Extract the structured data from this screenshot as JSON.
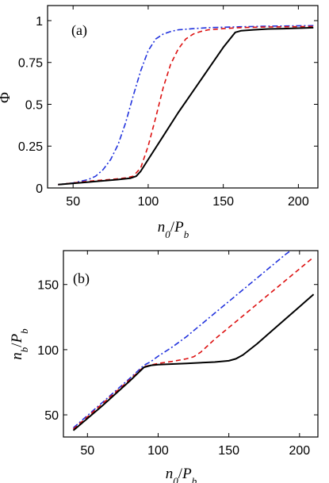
{
  "chart_data": [
    {
      "type": "line",
      "panel_label": "(a)",
      "xlabel": "n0/Pb",
      "ylabel": "Φ",
      "xlim": [
        33,
        213
      ],
      "ylim": [
        0,
        1.09
      ],
      "x_ticks": [
        50,
        100,
        150,
        200
      ],
      "y_ticks": [
        0,
        0.25,
        0.5,
        0.75,
        1
      ],
      "y_tick_labels": [
        "0",
        "0.25",
        "0.5",
        "0.75",
        "1"
      ],
      "grid": false,
      "series": [
        {
          "color": "#2233dd",
          "dash": "dashdot",
          "x": [
            40,
            50,
            60,
            65,
            70,
            75,
            80,
            85,
            90,
            95,
            100,
            105,
            110,
            115,
            120,
            130,
            140,
            160,
            180,
            210
          ],
          "y": [
            0.02,
            0.03,
            0.05,
            0.07,
            0.11,
            0.17,
            0.26,
            0.39,
            0.55,
            0.7,
            0.82,
            0.89,
            0.92,
            0.935,
            0.945,
            0.952,
            0.958,
            0.963,
            0.967,
            0.97
          ]
        },
        {
          "color": "#dd1111",
          "dash": "dashed",
          "x": [
            40,
            60,
            80,
            85,
            90,
            95,
            100,
            105,
            110,
            115,
            120,
            125,
            130,
            135,
            140,
            150,
            160,
            180,
            210
          ],
          "y": [
            0.02,
            0.04,
            0.055,
            0.06,
            0.07,
            0.12,
            0.25,
            0.42,
            0.6,
            0.74,
            0.83,
            0.89,
            0.92,
            0.935,
            0.945,
            0.952,
            0.958,
            0.962,
            0.965
          ]
        },
        {
          "color": "#000000",
          "dash": "solid",
          "x": [
            40,
            60,
            80,
            88,
            92,
            95,
            100,
            110,
            120,
            130,
            140,
            150,
            158,
            162,
            170,
            180,
            190,
            200,
            210
          ],
          "y": [
            0.02,
            0.035,
            0.05,
            0.058,
            0.07,
            0.1,
            0.17,
            0.31,
            0.45,
            0.58,
            0.71,
            0.84,
            0.93,
            0.94,
            0.945,
            0.95,
            0.952,
            0.955,
            0.958
          ]
        }
      ]
    },
    {
      "type": "line",
      "panel_label": "(b)",
      "xlabel": "n0/Pb",
      "ylabel": "nb/Pb",
      "xlim": [
        33,
        213
      ],
      "ylim": [
        33,
        176
      ],
      "x_ticks": [
        50,
        100,
        150,
        200
      ],
      "y_ticks": [
        50,
        100,
        150
      ],
      "y_tick_labels": [
        "50",
        "100",
        "150"
      ],
      "grid": false,
      "series": [
        {
          "color": "#2233dd",
          "dash": "dashdot",
          "x": [
            40,
            60,
            80,
            90,
            95,
            100,
            110,
            120,
            130,
            140,
            150,
            160,
            170,
            180,
            190,
            195
          ],
          "y": [
            40,
            59,
            78,
            88,
            91,
            95,
            102,
            110,
            119,
            128,
            137,
            146,
            155,
            164,
            173,
            177
          ]
        },
        {
          "color": "#dd1111",
          "dash": "dashed",
          "x": [
            40,
            60,
            80,
            90,
            100,
            110,
            120,
            125,
            130,
            135,
            140,
            150,
            160,
            170,
            180,
            190,
            200,
            210
          ],
          "y": [
            39,
            58,
            77,
            87,
            89.5,
            91,
            93,
            94.5,
            98,
            103,
            108,
            117,
            126,
            135,
            144,
            153,
            162,
            171
          ]
        },
        {
          "color": "#000000",
          "dash": "solid",
          "x": [
            40,
            60,
            80,
            90,
            95,
            100,
            120,
            140,
            150,
            155,
            160,
            170,
            180,
            190,
            200,
            210
          ],
          "y": [
            38,
            56.5,
            76,
            86.5,
            88,
            88.5,
            89.5,
            90.5,
            91.5,
            93,
            96,
            104.5,
            114,
            123.5,
            133,
            142.5
          ]
        }
      ]
    }
  ]
}
